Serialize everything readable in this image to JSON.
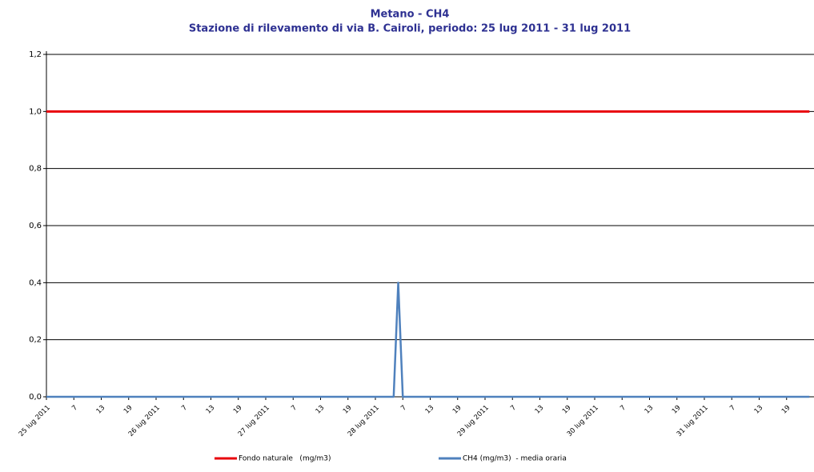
{
  "chart_data": {
    "type": "line",
    "title": "Metano - CH4",
    "subtitle": "Stazione di rilevamento di via B. Cairoli, periodo: 25 lug 2011 - 31 lug 2011",
    "categories": [
      "25 lug 2011",
      null,
      null,
      null,
      null,
      null,
      "7",
      null,
      null,
      null,
      null,
      null,
      "13",
      null,
      null,
      null,
      null,
      null,
      "19",
      null,
      null,
      null,
      null,
      null,
      "26 lug 2011",
      null,
      null,
      null,
      null,
      null,
      "7",
      null,
      null,
      null,
      null,
      null,
      "13",
      null,
      null,
      null,
      null,
      null,
      "19",
      null,
      null,
      null,
      null,
      null,
      "27 lug 2011",
      null,
      null,
      null,
      null,
      null,
      "7",
      null,
      null,
      null,
      null,
      null,
      "13",
      null,
      null,
      null,
      null,
      null,
      "19",
      null,
      null,
      null,
      null,
      null,
      "28 lug 2011",
      null,
      null,
      null,
      null,
      null,
      "7",
      null,
      null,
      null,
      null,
      null,
      "13",
      null,
      null,
      null,
      null,
      null,
      "19",
      null,
      null,
      null,
      null,
      null,
      "29 lug 2011",
      null,
      null,
      null,
      null,
      null,
      "7",
      null,
      null,
      null,
      null,
      null,
      "13",
      null,
      null,
      null,
      null,
      null,
      "19",
      null,
      null,
      null,
      null,
      null,
      "30 lug 2011",
      null,
      null,
      null,
      null,
      null,
      "7",
      null,
      null,
      null,
      null,
      null,
      "13",
      null,
      null,
      null,
      null,
      null,
      "19",
      null,
      null,
      null,
      null,
      null,
      "31 lug 2011",
      null,
      null,
      null,
      null,
      null,
      "7",
      null,
      null,
      null,
      null,
      null,
      "13",
      null,
      null,
      null,
      null,
      null,
      "19",
      null,
      null,
      null,
      null,
      null
    ],
    "series": [
      {
        "name": "Fondo naturale   (mg/m3)",
        "color": "#e8000b",
        "values": [
          1,
          1,
          1,
          1,
          1,
          1,
          1,
          1,
          1,
          1,
          1,
          1,
          1,
          1,
          1,
          1,
          1,
          1,
          1,
          1,
          1,
          1,
          1,
          1,
          1,
          1,
          1,
          1,
          1,
          1,
          1,
          1,
          1,
          1,
          1,
          1,
          1,
          1,
          1,
          1,
          1,
          1,
          1,
          1,
          1,
          1,
          1,
          1,
          1,
          1,
          1,
          1,
          1,
          1,
          1,
          1,
          1,
          1,
          1,
          1,
          1,
          1,
          1,
          1,
          1,
          1,
          1,
          1,
          1,
          1,
          1,
          1,
          1,
          1,
          1,
          1,
          1,
          1,
          1,
          1,
          1,
          1,
          1,
          1,
          1,
          1,
          1,
          1,
          1,
          1,
          1,
          1,
          1,
          1,
          1,
          1,
          1,
          1,
          1,
          1,
          1,
          1,
          1,
          1,
          1,
          1,
          1,
          1,
          1,
          1,
          1,
          1,
          1,
          1,
          1,
          1,
          1,
          1,
          1,
          1,
          1,
          1,
          1,
          1,
          1,
          1,
          1,
          1,
          1,
          1,
          1,
          1,
          1,
          1,
          1,
          1,
          1,
          1,
          1,
          1,
          1,
          1,
          1,
          1,
          1,
          1,
          1,
          1,
          1,
          1,
          1,
          1,
          1,
          1,
          1,
          1,
          1,
          1,
          1,
          1,
          1,
          1,
          1,
          1,
          1,
          1,
          1,
          1
        ]
      },
      {
        "name": "CH4 (mg/m3)  - media oraria",
        "color": "#4f81bd",
        "values": [
          0,
          0,
          0,
          0,
          0,
          0,
          0,
          0,
          0,
          0,
          0,
          0,
          0,
          0,
          0,
          0,
          0,
          0,
          0,
          0,
          0,
          0,
          0,
          0,
          0,
          0,
          0,
          0,
          0,
          0,
          0,
          0,
          0,
          0,
          0,
          0,
          0,
          0,
          0,
          0,
          0,
          0,
          0,
          0,
          0,
          0,
          0,
          0,
          0,
          0,
          0,
          0,
          0,
          0,
          0,
          0,
          0,
          0,
          0,
          0,
          0,
          0,
          0,
          0,
          0,
          0,
          0,
          0,
          0,
          0,
          0,
          0,
          0,
          0,
          0,
          0,
          0,
          0.4,
          0,
          0,
          0,
          0,
          0,
          0,
          0,
          0,
          0,
          0,
          0,
          0,
          0,
          0,
          0,
          0,
          0,
          0,
          0,
          0,
          0,
          0,
          0,
          0,
          0,
          0,
          0,
          0,
          0,
          0,
          0,
          0,
          0,
          0,
          0,
          0,
          0,
          0,
          0,
          0,
          0,
          0,
          0,
          0,
          0,
          0,
          0,
          0,
          0,
          0,
          0,
          0,
          0,
          0,
          0,
          0,
          0,
          0,
          0,
          0,
          0,
          0,
          0,
          0,
          0,
          0,
          0,
          0,
          0,
          0,
          0,
          0,
          0,
          0,
          0,
          0,
          0,
          0,
          0,
          0,
          0,
          0,
          0,
          0,
          0,
          0,
          0,
          0,
          0,
          0
        ]
      }
    ],
    "ylim": [
      0,
      1.2
    ],
    "yticks": [
      {
        "value": 0,
        "label": "0,0"
      },
      {
        "value": 0.2,
        "label": "0,2"
      },
      {
        "value": 0.4,
        "label": "0,4"
      },
      {
        "value": 0.6,
        "label": "0,6"
      },
      {
        "value": 0.8,
        "label": "0,8"
      },
      {
        "value": 1,
        "label": "1,0"
      },
      {
        "value": 1.2,
        "label": "1,2"
      }
    ],
    "grid": true
  }
}
